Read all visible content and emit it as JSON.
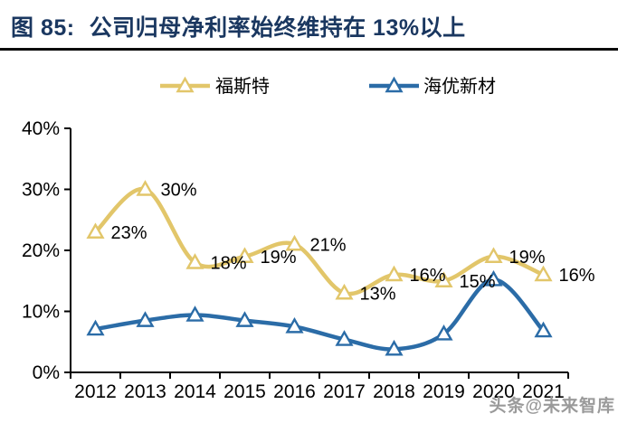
{
  "figure": {
    "label": "图 85:",
    "title": "公司归母净利率始终维持在 13%以上"
  },
  "watermark": "头条@未来智库",
  "colors": {
    "title_navy": "#1a3760",
    "divider_black": "#0c0c0c",
    "foster_gold": "#e2c66a",
    "haiyou_blue": "#2b6ca7",
    "axis_black": "#000000",
    "label_black": "#000000",
    "watermark_gray": "#9a9a9a",
    "marker_fill": "#ffffff"
  },
  "chart_data": {
    "type": "line",
    "title": "公司归母净利率始终维持在 13%以上",
    "categories": [
      "2012",
      "2013",
      "2014",
      "2015",
      "2016",
      "2017",
      "2018",
      "2019",
      "2020",
      "2021"
    ],
    "series": [
      {
        "key": "foster",
        "name": "福斯特",
        "color": "#e2c66a",
        "marker": "open-triangle",
        "values": [
          23,
          30,
          18,
          19,
          21,
          13,
          16,
          15,
          19,
          16
        ],
        "point_labels": [
          "23%",
          "30%",
          "18%",
          "19%",
          "21%",
          "13%",
          "16%",
          "15%",
          "19%",
          "16%"
        ]
      },
      {
        "key": "haiyou",
        "name": "海优新材",
        "color": "#2b6ca7",
        "marker": "open-triangle",
        "values": [
          7.1,
          8.5,
          9.4,
          8.5,
          7.5,
          5.4,
          3.8,
          6.3,
          15.2,
          6.8
        ],
        "point_labels": []
      }
    ],
    "ylim": [
      0,
      40
    ],
    "ytick_values": [
      0,
      10,
      20,
      30,
      40
    ],
    "ytick_labels": [
      "0%",
      "10%",
      "20%",
      "30%",
      "40%"
    ],
    "xlabel": "",
    "ylabel": "",
    "grid": false,
    "smooth": true,
    "legend_position": "top"
  }
}
